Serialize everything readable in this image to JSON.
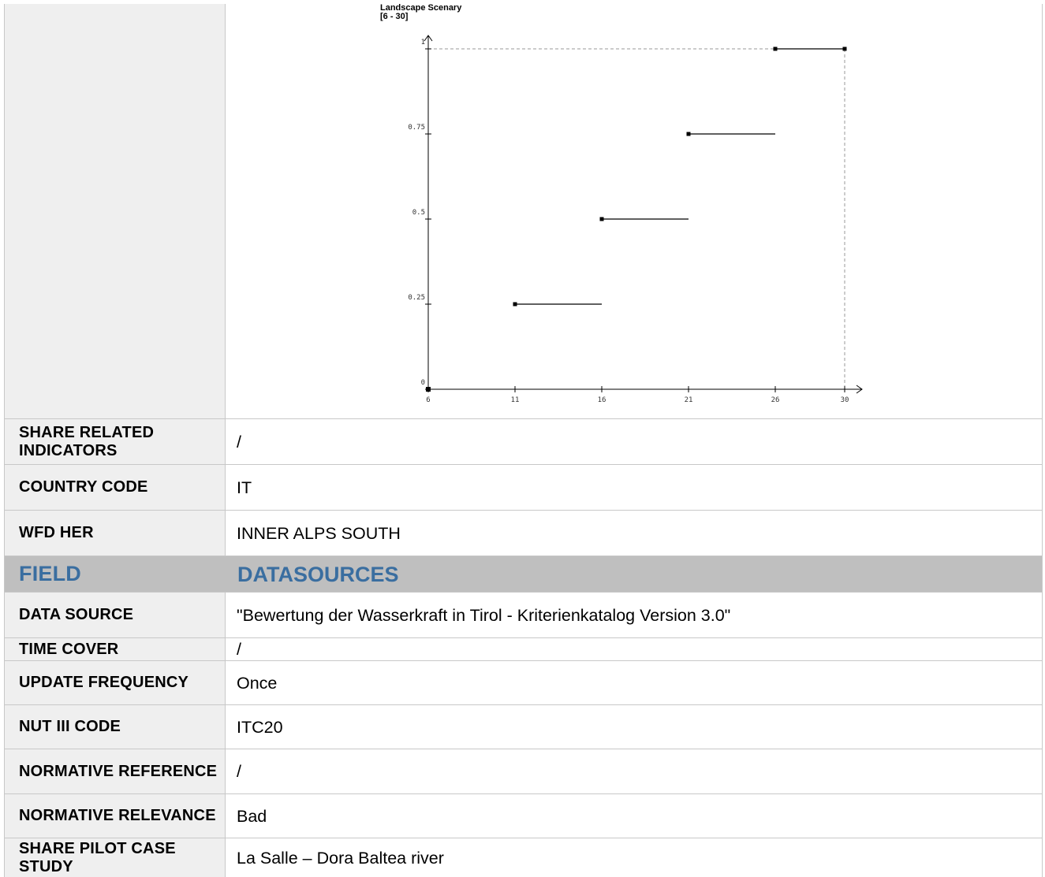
{
  "chart_data": {
    "type": "line",
    "title_line1": "Landscape Scenary",
    "title_line2": "[6 - 30]",
    "x_ticks": [
      "6",
      "11",
      "16",
      "21",
      "26",
      "30"
    ],
    "y_ticks": [
      "0",
      "0.25",
      "0.5",
      "0.75",
      "1"
    ],
    "xlim": [
      6,
      30
    ],
    "ylim": [
      0,
      1
    ],
    "series": [
      {
        "segments": [
          {
            "x": [
              11,
              16
            ],
            "y": 0.25
          },
          {
            "x": [
              16,
              21
            ],
            "y": 0.5
          },
          {
            "x": [
              21,
              26
            ],
            "y": 0.75
          },
          {
            "x": [
              26,
              30
            ],
            "y": 1
          }
        ]
      }
    ],
    "origin_point": {
      "x": 6,
      "y": 0
    },
    "dashed_bounds": true
  },
  "rows": [
    {
      "label": "SHARE RELATED INDICATORS",
      "value": "/"
    },
    {
      "label": "COUNTRY CODE",
      "value": "IT"
    },
    {
      "label": "WFD HER",
      "value": "INNER ALPS SOUTH"
    },
    {
      "label": "FIELD",
      "value": "DATASOURCES"
    },
    {
      "label": "DATA SOURCE",
      "value": "\"Bewertung der Wasserkraft in Tirol - Kriterienkatalog Version 3.0\""
    },
    {
      "label": "TIME COVER",
      "value": "/"
    },
    {
      "label": "UPDATE FREQUENCY",
      "value": "Once"
    },
    {
      "label": "NUT III CODE",
      "value": "ITC20"
    },
    {
      "label": "NORMATIVE REFERENCE",
      "value": "/"
    },
    {
      "label": "NORMATIVE RELEVANCE",
      "value": "Bad"
    },
    {
      "label": "SHARE PILOT CASE STUDY",
      "value": "La Salle – Dora Baltea river"
    }
  ],
  "colors": {
    "header_bg": "#bfbfbf",
    "header_text": "#3a6ea0",
    "label_bg": "#efefef"
  }
}
